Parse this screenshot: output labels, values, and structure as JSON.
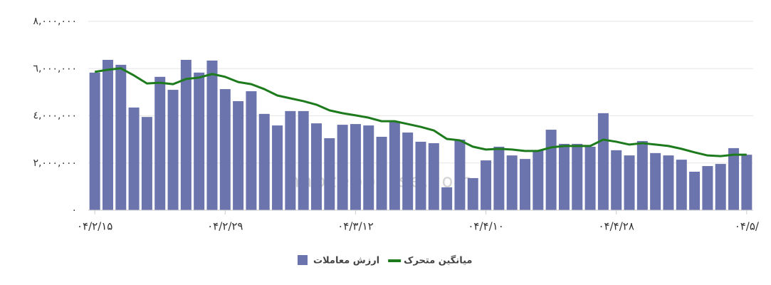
{
  "chart_data": {
    "type": "bar",
    "watermark": "nabzebourse.com",
    "categories": [
      "۰۴/۲/۱۵",
      null,
      null,
      null,
      null,
      null,
      null,
      null,
      null,
      null,
      "۰۴/۲/۲۹",
      null,
      null,
      null,
      null,
      null,
      null,
      null,
      null,
      null,
      "۰۴/۳/۱۲",
      null,
      null,
      null,
      null,
      null,
      null,
      null,
      null,
      null,
      "۰۴/۴/۱۰",
      null,
      null,
      null,
      null,
      null,
      null,
      null,
      null,
      null,
      "۰۴/۴/۲۸",
      null,
      null,
      null,
      null,
      null,
      null,
      null,
      null,
      null,
      "۰۴/۵/"
    ],
    "series": [
      {
        "name": "ارزش معاملات",
        "type": "bar",
        "color": "#6c74ad",
        "values": [
          5830000,
          6370000,
          6160000,
          4350000,
          3950000,
          5650000,
          5100000,
          6370000,
          5830000,
          6340000,
          5130000,
          4620000,
          5040000,
          4080000,
          3590000,
          4200000,
          4200000,
          3680000,
          3050000,
          3620000,
          3650000,
          3590000,
          3110000,
          3770000,
          3290000,
          2900000,
          2840000,
          970000,
          2990000,
          1360000,
          2110000,
          2690000,
          2320000,
          2170000,
          2540000,
          3410000,
          2810000,
          2810000,
          2690000,
          4110000,
          2540000,
          2320000,
          2930000,
          2420000,
          2320000,
          2140000,
          1630000,
          1870000,
          1960000,
          2630000,
          2350000
        ]
      },
      {
        "name": "میانگین متحرک",
        "type": "line",
        "color": "#1d7b1d",
        "values": [
          5860000,
          5950000,
          6010000,
          5710000,
          5370000,
          5400000,
          5340000,
          5560000,
          5620000,
          5770000,
          5650000,
          5430000,
          5340000,
          5130000,
          4860000,
          4740000,
          4620000,
          4470000,
          4230000,
          4110000,
          4020000,
          3920000,
          3770000,
          3770000,
          3650000,
          3530000,
          3380000,
          3020000,
          2960000,
          2690000,
          2570000,
          2600000,
          2570000,
          2510000,
          2510000,
          2660000,
          2720000,
          2720000,
          2720000,
          2990000,
          2900000,
          2780000,
          2840000,
          2780000,
          2720000,
          2600000,
          2450000,
          2320000,
          2290000,
          2350000,
          2350000
        ]
      }
    ],
    "ylim": [
      0,
      8000000
    ],
    "yticks": [
      {
        "value": 0,
        "label": "٠"
      },
      {
        "value": 2000000,
        "label": "٢,٠٠٠,٠٠٠"
      },
      {
        "value": 4000000,
        "label": "٤,٠٠٠,٠٠٠"
      },
      {
        "value": 6000000,
        "label": "٦,٠٠٠,٠٠٠"
      },
      {
        "value": 8000000,
        "label": "٨,٠٠٠,٠٠٠"
      }
    ],
    "grid": true
  }
}
